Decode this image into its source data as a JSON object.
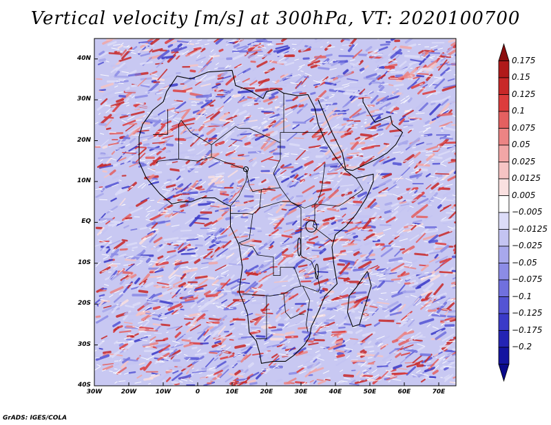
{
  "title": "Vertical velocity [m/s] at 300hPa, VT: 2020100700",
  "footer": "GrADS: IGES/COLA",
  "map": {
    "lon_range": [
      -30,
      75
    ],
    "lat_range": [
      -40,
      45
    ],
    "lat_labels": [
      {
        "value": 40,
        "text": "40N"
      },
      {
        "value": 30,
        "text": "30N"
      },
      {
        "value": 20,
        "text": "20N"
      },
      {
        "value": 10,
        "text": "10N"
      },
      {
        "value": 0,
        "text": "EQ"
      },
      {
        "value": -10,
        "text": "10S"
      },
      {
        "value": -20,
        "text": "20S"
      },
      {
        "value": -30,
        "text": "30S"
      },
      {
        "value": -40,
        "text": "40S"
      }
    ],
    "lon_labels": [
      {
        "value": -30,
        "text": "30W"
      },
      {
        "value": -20,
        "text": "20W"
      },
      {
        "value": -10,
        "text": "10W"
      },
      {
        "value": 0,
        "text": "0"
      },
      {
        "value": 10,
        "text": "10E"
      },
      {
        "value": 20,
        "text": "20E"
      },
      {
        "value": 30,
        "text": "30E"
      },
      {
        "value": 40,
        "text": "40E"
      },
      {
        "value": 50,
        "text": "50E"
      },
      {
        "value": 60,
        "text": "60E"
      },
      {
        "value": 70,
        "text": "70E"
      }
    ],
    "africa_outline": [
      [
        -17,
        21
      ],
      [
        -16,
        24
      ],
      [
        -13,
        27.5
      ],
      [
        -10,
        29.5
      ],
      [
        -9,
        32
      ],
      [
        -6,
        35.8
      ],
      [
        -2,
        35.1
      ],
      [
        3,
        36.8
      ],
      [
        10,
        37.2
      ],
      [
        11,
        33.5
      ],
      [
        15,
        32.3
      ],
      [
        19,
        30.3
      ],
      [
        20,
        32
      ],
      [
        23,
        32.6
      ],
      [
        25,
        31.6
      ],
      [
        29,
        31
      ],
      [
        32,
        31.3
      ],
      [
        34,
        28
      ],
      [
        35,
        24
      ],
      [
        37,
        20
      ],
      [
        38.5,
        18
      ],
      [
        40,
        16
      ],
      [
        43,
        12.7
      ],
      [
        46,
        10.8
      ],
      [
        51,
        11.8
      ],
      [
        51,
        10
      ],
      [
        49,
        6
      ],
      [
        46,
        2
      ],
      [
        43,
        -1
      ],
      [
        40,
        -3
      ],
      [
        39,
        -6
      ],
      [
        39.5,
        -10
      ],
      [
        40.5,
        -15
      ],
      [
        37,
        -18
      ],
      [
        35,
        -22
      ],
      [
        33,
        -25.5
      ],
      [
        32.5,
        -28
      ],
      [
        31,
        -30
      ],
      [
        28,
        -32.5
      ],
      [
        25.5,
        -34
      ],
      [
        22,
        -34
      ],
      [
        18.5,
        -34.5
      ],
      [
        18,
        -32
      ],
      [
        17,
        -29
      ],
      [
        15,
        -27
      ],
      [
        14.5,
        -22.5
      ],
      [
        13,
        -19
      ],
      [
        12,
        -17
      ],
      [
        13,
        -11
      ],
      [
        12,
        -5.5
      ],
      [
        9.5,
        -1
      ],
      [
        9.5,
        4
      ],
      [
        8,
        4.5
      ],
      [
        5,
        6
      ],
      [
        1,
        6
      ],
      [
        -2,
        5
      ],
      [
        -5,
        5
      ],
      [
        -7.5,
        4.5
      ],
      [
        -11,
        7
      ],
      [
        -13,
        9
      ],
      [
        -15,
        11
      ],
      [
        -17,
        14.7
      ],
      [
        -17,
        21
      ]
    ],
    "madagascar_outline": [
      [
        49.3,
        -12
      ],
      [
        50.4,
        -15.5
      ],
      [
        49.5,
        -18
      ],
      [
        48,
        -22
      ],
      [
        47,
        -25
      ],
      [
        45,
        -25.5
      ],
      [
        43.5,
        -22
      ],
      [
        44,
        -18
      ],
      [
        46,
        -16
      ],
      [
        48,
        -13.5
      ],
      [
        49.3,
        -12
      ]
    ],
    "arabia_outline": [
      [
        35,
        30
      ],
      [
        36.5,
        27
      ],
      [
        39,
        22
      ],
      [
        42,
        17
      ],
      [
        43,
        13
      ],
      [
        45,
        12.7
      ],
      [
        52,
        15.5
      ],
      [
        55,
        17
      ],
      [
        57.5,
        19
      ],
      [
        59.5,
        22
      ],
      [
        56.5,
        24
      ],
      [
        56,
        26
      ],
      [
        51.5,
        24.5
      ],
      [
        50,
        26.5
      ],
      [
        48,
        29.5
      ],
      [
        48,
        30.5
      ]
    ],
    "borders": [
      [
        [
          -8.7,
          27.7
        ],
        [
          -8.7,
          21.5
        ],
        [
          -13,
          21.5
        ]
      ],
      [
        [
          -4.8,
          25
        ],
        [
          -2,
          22
        ],
        [
          4,
          19
        ],
        [
          11,
          23.5
        ],
        [
          12,
          23
        ]
      ],
      [
        [
          -12,
          14.5
        ],
        [
          -11.5,
          15
        ],
        [
          -5.5,
          15.5
        ],
        [
          -5.5,
          24
        ],
        [
          -4.8,
          25
        ]
      ],
      [
        [
          4,
          19
        ],
        [
          4,
          16
        ],
        [
          0,
          15
        ],
        [
          -5.5,
          15.5
        ]
      ],
      [
        [
          4,
          16
        ],
        [
          12,
          13.5
        ],
        [
          14,
          13
        ]
      ],
      [
        [
          12,
          23
        ],
        [
          15,
          23
        ],
        [
          24,
          19.5
        ],
        [
          24,
          15.5
        ],
        [
          22,
          12
        ],
        [
          24,
          8.5
        ]
      ],
      [
        [
          24,
          19.5
        ],
        [
          24,
          22
        ],
        [
          25,
          22
        ],
        [
          25,
          31.6
        ]
      ],
      [
        [
          25,
          22
        ],
        [
          37,
          22
        ]
      ],
      [
        [
          24,
          8.5
        ],
        [
          27,
          5
        ],
        [
          31,
          3.5
        ],
        [
          34,
          4.5
        ],
        [
          35,
          5.5
        ]
      ],
      [
        [
          14,
          13
        ],
        [
          15,
          9
        ],
        [
          16,
          7.5
        ],
        [
          18.5,
          8
        ],
        [
          24,
          8.5
        ]
      ],
      [
        [
          9.5,
          4
        ],
        [
          12,
          6.5
        ],
        [
          14,
          10
        ],
        [
          14.5,
          12.5
        ],
        [
          14,
          13
        ]
      ],
      [
        [
          18.5,
          8
        ],
        [
          18,
          3.5
        ],
        [
          16,
          2
        ],
        [
          15,
          -4
        ],
        [
          12,
          -5
        ]
      ],
      [
        [
          9.5,
          2.2
        ],
        [
          11.3,
          2.2
        ],
        [
          14,
          2.2
        ],
        [
          16,
          2
        ]
      ],
      [
        [
          18,
          3.5
        ],
        [
          24,
          5
        ],
        [
          27,
          5
        ],
        [
          30,
          3.5
        ],
        [
          30,
          -1
        ]
      ],
      [
        [
          30,
          -1
        ],
        [
          30,
          -8
        ],
        [
          30.5,
          -8.5
        ],
        [
          33,
          -9.5
        ]
      ],
      [
        [
          34,
          4.5
        ],
        [
          41,
          4
        ],
        [
          42,
          4.5
        ],
        [
          48,
          8
        ],
        [
          46,
          10.8
        ]
      ],
      [
        [
          35,
          5.5
        ],
        [
          36,
          8
        ],
        [
          37,
          14.5
        ]
      ],
      [
        [
          34,
          4.5
        ],
        [
          34,
          1
        ],
        [
          33.5,
          -1
        ],
        [
          39,
          -4.5
        ]
      ],
      [
        [
          13,
          -17.5
        ],
        [
          21,
          -18
        ],
        [
          25,
          -17.5
        ],
        [
          28,
          -16
        ],
        [
          30,
          -15.6
        ],
        [
          30.5,
          -15.6
        ]
      ],
      [
        [
          20,
          -18
        ],
        [
          20,
          -22
        ],
        [
          20,
          -25
        ],
        [
          20,
          -28.5
        ],
        [
          17,
          -28.5
        ]
      ],
      [
        [
          25,
          -17.5
        ],
        [
          25.5,
          -22
        ],
        [
          27,
          -23.5
        ],
        [
          29.5,
          -22.5
        ],
        [
          31,
          -22.5
        ]
      ],
      [
        [
          22,
          -9
        ],
        [
          22,
          -13
        ],
        [
          24,
          -13
        ],
        [
          24,
          -11
        ],
        [
          28,
          -11
        ],
        [
          29,
          -13
        ],
        [
          30,
          -15.6
        ]
      ],
      [
        [
          30.5,
          -15.6
        ],
        [
          32.5,
          -19
        ],
        [
          32,
          -22
        ],
        [
          31.5,
          -25
        ],
        [
          32,
          -26.8
        ]
      ],
      [
        [
          33,
          -9.5
        ],
        [
          34,
          -11.5
        ],
        [
          35,
          -14
        ],
        [
          35.5,
          -16
        ],
        [
          35,
          -17
        ],
        [
          30.5,
          -15.6
        ]
      ],
      [
        [
          12,
          -5
        ],
        [
          13,
          -5.5
        ],
        [
          16,
          -6
        ],
        [
          17.5,
          -8
        ],
        [
          22,
          -8.5
        ],
        [
          22,
          -9
        ]
      ]
    ],
    "lakes": [
      {
        "lon": 33,
        "lat": -1,
        "rx": 1.6,
        "ry": 1.4
      },
      {
        "lon": 29.5,
        "lat": -6,
        "rx": 0.45,
        "ry": 2.2
      },
      {
        "lon": 34.6,
        "lat": -12,
        "rx": 0.45,
        "ry": 1.8
      },
      {
        "lon": 14,
        "lat": 13,
        "rx": 0.7,
        "ry": 0.6
      }
    ],
    "seed": 2020100700
  },
  "colorbar": {
    "colors": [
      "#8b0d0d",
      "#b01a1a",
      "#c82828",
      "#dc3c3c",
      "#e46060",
      "#ec8484",
      "#f2a6a6",
      "#f6c4c4",
      "#fae0e0",
      "#ffffff",
      "#dcdcf8",
      "#c4c4f2",
      "#a8a8ec",
      "#8c8ce6",
      "#7070de",
      "#5454d4",
      "#3a3ac8",
      "#2424b4",
      "#1414a0",
      "#0a0a8a"
    ],
    "labels": [
      "0.175",
      "0.15",
      "0.125",
      "0.1",
      "0.075",
      "0.05",
      "0.025",
      "0.0125",
      "0.005",
      "−0.005",
      "−0.0125",
      "−0.025",
      "−0.05",
      "−0.075",
      "−0.1",
      "−0.125",
      "−0.175",
      "−0.2"
    ]
  }
}
